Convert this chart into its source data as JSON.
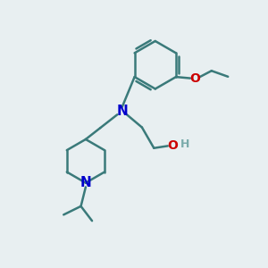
{
  "background_color": "#e8eff1",
  "bond_color": "#3a7a7a",
  "N_color": "#0000cc",
  "O_color": "#cc0000",
  "H_color": "#7aabab",
  "line_width": 1.8,
  "font_size": 10,
  "figsize": [
    3.0,
    3.0
  ],
  "dpi": 100,
  "xlim": [
    0,
    10
  ],
  "ylim": [
    0,
    10
  ]
}
